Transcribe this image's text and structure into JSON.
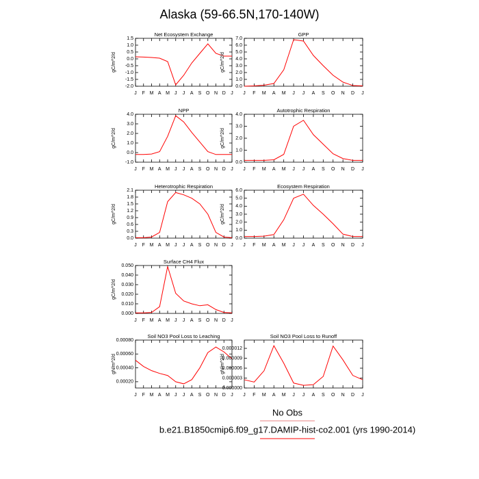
{
  "title": "Alaska (59-66.5N,170-140W)",
  "legend": [
    {
      "name": "No Obs",
      "color": "#e88080"
    },
    {
      "name": "b.e21.B1850cmip6.f09_g17.DAMIP-hist-co2.001 (yrs 1990-2014)",
      "color": "#ff0000"
    }
  ],
  "chart_data": [
    {
      "type": "line",
      "title": "Net Ecosystem Exchange",
      "ylabel": "gC/m^2/d",
      "categories": [
        "J",
        "F",
        "M",
        "A",
        "M",
        "J",
        "J",
        "A",
        "S",
        "O",
        "N",
        "D",
        "J"
      ],
      "values": [
        0.15,
        0.13,
        0.1,
        0.05,
        -0.2,
        -1.9,
        -1.2,
        -0.3,
        0.4,
        1.1,
        0.4,
        0.2,
        0.2
      ],
      "color": "#ff0000",
      "ylim": [
        -2,
        1.5
      ],
      "yticks": [
        1.5,
        {
          "value": 1,
          "label": "1.0"
        },
        0.5,
        {
          "value": 0,
          "label": "0.0"
        },
        -0.5,
        {
          "value": -1,
          "label": "-1.0"
        },
        -1.5,
        {
          "value": -2,
          "label": "-2.0"
        }
      ]
    },
    {
      "type": "line",
      "title": "GPP",
      "ylabel": "gC/m^2/d",
      "categories": [
        "J",
        "F",
        "M",
        "A",
        "M",
        "J",
        "J",
        "A",
        "S",
        "O",
        "N",
        "D",
        "J"
      ],
      "values": [
        0,
        0.05,
        0.15,
        0.4,
        2.4,
        6.8,
        6.6,
        4.5,
        3.0,
        1.6,
        0.6,
        0.1,
        0.05
      ],
      "color": "#ff0000",
      "ylim": [
        0,
        7
      ],
      "yticks": [
        {
          "value": 7,
          "label": "7.0"
        },
        {
          "value": 6,
          "label": "6.0"
        },
        {
          "value": 5,
          "label": "5.0"
        },
        {
          "value": 4,
          "label": "4.0"
        },
        {
          "value": 3,
          "label": "3.0"
        },
        {
          "value": 2,
          "label": "2.0"
        },
        {
          "value": 1,
          "label": "1.0"
        },
        {
          "value": 0,
          "label": "0.0"
        }
      ]
    },
    {
      "type": "line",
      "title": "NPP",
      "ylabel": "gC/m^2/d",
      "categories": [
        "J",
        "F",
        "M",
        "A",
        "M",
        "J",
        "J",
        "A",
        "S",
        "O",
        "N",
        "D",
        "J"
      ],
      "values": [
        -0.2,
        -0.2,
        -0.15,
        0.1,
        1.7,
        3.85,
        3.2,
        2.1,
        1.1,
        0.1,
        -0.2,
        -0.2,
        -0.2
      ],
      "color": "#ff0000",
      "ylim": [
        -1,
        4
      ],
      "yticks": [
        {
          "value": 4,
          "label": "4.0"
        },
        {
          "value": 3,
          "label": "3.0"
        },
        {
          "value": 2,
          "label": "2.0"
        },
        {
          "value": 1,
          "label": "1.0"
        },
        {
          "value": 0,
          "label": "0.0"
        },
        {
          "value": -1,
          "label": "-1.0"
        }
      ]
    },
    {
      "type": "line",
      "title": "Autotrophic Respiration",
      "ylabel": "gC/m^2/d",
      "categories": [
        "J",
        "F",
        "M",
        "A",
        "M",
        "J",
        "J",
        "A",
        "S",
        "O",
        "N",
        "D",
        "J"
      ],
      "values": [
        0.15,
        0.15,
        0.15,
        0.2,
        0.65,
        3.0,
        3.5,
        2.3,
        1.5,
        0.7,
        0.3,
        0.15,
        0.15
      ],
      "color": "#ff0000",
      "ylim": [
        0,
        4
      ],
      "yticks": [
        {
          "value": 4,
          "label": "4.0"
        },
        {
          "value": 3,
          "label": "3.0"
        },
        {
          "value": 2,
          "label": "2.0"
        },
        {
          "value": 1,
          "label": "1.0"
        },
        {
          "value": 0,
          "label": "0.0"
        }
      ]
    },
    {
      "type": "line",
      "title": "Heterotrophic Respiration",
      "ylabel": "gC/m^2/d",
      "categories": [
        "J",
        "F",
        "M",
        "A",
        "M",
        "J",
        "J",
        "A",
        "S",
        "O",
        "N",
        "D",
        "J"
      ],
      "values": [
        0.02,
        0.02,
        0.05,
        0.25,
        1.6,
        2.0,
        1.9,
        1.75,
        1.5,
        1.05,
        0.25,
        0.05,
        0.02
      ],
      "color": "#ff0000",
      "ylim": [
        0,
        2.1
      ],
      "yticks": [
        2.1,
        1.8,
        1.5,
        1.2,
        0.9,
        0.6,
        0.3,
        {
          "value": 0,
          "label": "0.0"
        }
      ]
    },
    {
      "type": "line",
      "title": "Ecosystem Respiration",
      "ylabel": "gC/m^2/d",
      "categories": [
        "J",
        "F",
        "M",
        "A",
        "M",
        "J",
        "J",
        "A",
        "S",
        "O",
        "N",
        "D",
        "J"
      ],
      "values": [
        0.2,
        0.2,
        0.25,
        0.45,
        2.3,
        5.0,
        5.5,
        4.1,
        3.0,
        1.8,
        0.5,
        0.2,
        0.2
      ],
      "color": "#ff0000",
      "ylim": [
        0,
        6
      ],
      "yticks": [
        {
          "value": 6,
          "label": "6.0"
        },
        {
          "value": 5,
          "label": "5.0"
        },
        {
          "value": 4,
          "label": "4.0"
        },
        {
          "value": 3,
          "label": "3.0"
        },
        {
          "value": 2,
          "label": "2.0"
        },
        {
          "value": 1,
          "label": "1.0"
        },
        {
          "value": 0,
          "label": "0.0"
        }
      ]
    },
    {
      "type": "line",
      "title": "Surface CH4 Flux",
      "ylabel": "gC/m^2/d",
      "categories": [
        "J",
        "F",
        "M",
        "A",
        "M",
        "J",
        "J",
        "A",
        "S",
        "O",
        "N",
        "D",
        "J"
      ],
      "values": [
        0.0005,
        0.0005,
        0.001,
        0.007,
        0.049,
        0.021,
        0.013,
        0.01,
        0.008,
        0.009,
        0.004,
        0.001,
        0.0005
      ],
      "color": "#ff0000",
      "ylim": [
        0,
        0.05
      ],
      "yticks": [
        {
          "value": 0.05,
          "label": "0.050"
        },
        {
          "value": 0.04,
          "label": "0.040"
        },
        {
          "value": 0.03,
          "label": "0.030"
        },
        {
          "value": 0.02,
          "label": "0.020"
        },
        {
          "value": 0.01,
          "label": "0.010"
        },
        {
          "value": 0,
          "label": "0.000"
        }
      ]
    },
    {
      "type": "line",
      "title": "Soil NO3 Pool Loss to Leaching",
      "ylabel": "gN/m^2/d",
      "categories": [
        "J",
        "F",
        "M",
        "A",
        "M",
        "J",
        "J",
        "A",
        "S",
        "O",
        "N",
        "D",
        "J"
      ],
      "values": [
        0.00051,
        0.00042,
        0.00036,
        0.00032,
        0.00029,
        0.0002,
        0.00017,
        0.00023,
        0.0004,
        0.00062,
        0.0007,
        0.00063,
        0.00053
      ],
      "color": "#ff0000",
      "ylim": [
        0.00011,
        0.0008
      ],
      "yticks": [
        {
          "value": 0.0008,
          "label": "0.00080"
        },
        {
          "value": 0.0006,
          "label": "0.00060"
        },
        {
          "value": 0.0004,
          "label": "0.00040"
        },
        {
          "value": 0.0002,
          "label": "0.00020"
        }
      ]
    },
    {
      "type": "line",
      "title": "Soil NO3 Pool Loss to Runoff",
      "ylabel": "gN/m^2/d",
      "categories": [
        "J",
        "F",
        "M",
        "A",
        "M",
        "J",
        "J",
        "A",
        "S",
        "O",
        "N",
        "D",
        "J"
      ],
      "values": [
        2.5e-06,
        1.8e-06,
        5.2e-06,
        1.28e-05,
        7.5e-06,
        1.5e-06,
        8e-07,
        1e-06,
        3.5e-06,
        1.27e-05,
        8.5e-06,
        3.8e-06,
        2.5e-06
      ],
      "color": "#ff0000",
      "ylim": [
        0,
        1.45e-05
      ],
      "yticks": [
        {
          "value": 1.2e-05,
          "label": "0.000012"
        },
        {
          "value": 9e-06,
          "label": "0.000009"
        },
        {
          "value": 6e-06,
          "label": "0.000006"
        },
        {
          "value": 3e-06,
          "label": "0.000003"
        },
        {
          "value": 0,
          "label": "0.000000"
        }
      ]
    }
  ]
}
